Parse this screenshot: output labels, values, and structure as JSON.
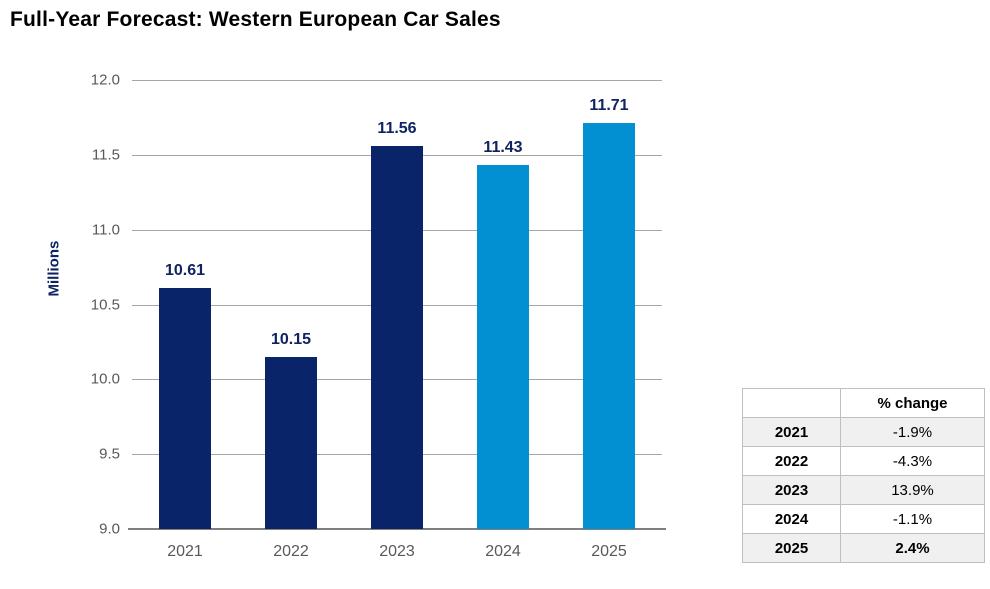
{
  "title": "Full-Year Forecast: Western European Car Sales",
  "chart_data": {
    "type": "bar",
    "title": "Full-Year Forecast: Western European Car Sales",
    "categories": [
      "2021",
      "2022",
      "2023",
      "2024",
      "2025"
    ],
    "values": [
      10.61,
      10.15,
      11.56,
      11.43,
      11.71
    ],
    "data_labels": [
      "10.61",
      "10.15",
      "11.56",
      "11.43",
      "11.71"
    ],
    "xlabel": "",
    "ylabel": "Millions",
    "ylim": [
      9.0,
      12.0
    ],
    "ytick_step": 0.5,
    "ytick_labels": [
      "9.0",
      "9.5",
      "10.0",
      "10.5",
      "11.0",
      "11.5",
      "12.0"
    ],
    "grid": true,
    "legend": false,
    "bar_colors": [
      "#0A246A",
      "#0A246A",
      "#0A246A",
      "#0390D3",
      "#0390D3"
    ]
  },
  "table": {
    "header": [
      "",
      "% change"
    ],
    "rows": [
      {
        "year": "2021",
        "change": "-1.9%",
        "bold_value": false
      },
      {
        "year": "2022",
        "change": "-4.3%",
        "bold_value": false
      },
      {
        "year": "2023",
        "change": "13.9%",
        "bold_value": false
      },
      {
        "year": "2024",
        "change": "-1.1%",
        "bold_value": false
      },
      {
        "year": "2025",
        "change": "2.4%",
        "bold_value": true
      }
    ]
  },
  "colors": {
    "navy_bar": "#0A246A",
    "blue_bar": "#0390D3",
    "data_label_text": "#0E2361",
    "axis_text": "#595959",
    "gridline": "#A6A6A6",
    "axis_line": "#7F7F7F",
    "table_border": "#BFBFBF",
    "table_alt_row": "#F0F0F0",
    "title_text": "#000000"
  }
}
